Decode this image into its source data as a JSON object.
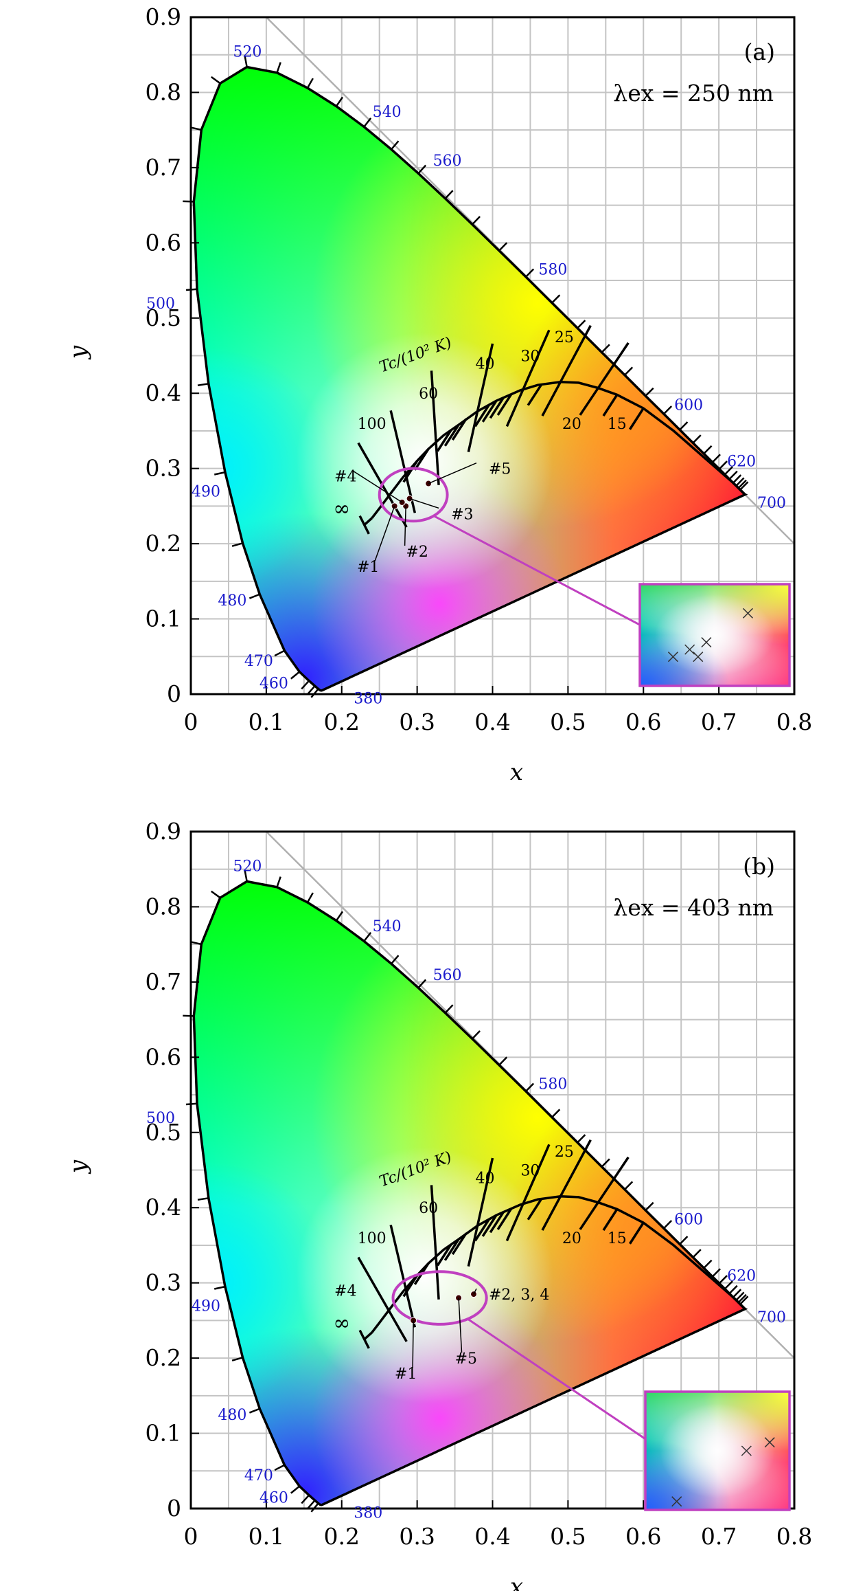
{
  "chart_data": [
    {
      "type": "scatter",
      "panel": "(a)",
      "excitation_label": "λex = 250 nm",
      "xlabel": "x",
      "ylabel": "y",
      "xlim": [
        0,
        0.8
      ],
      "ylim": [
        0,
        0.9
      ],
      "x_ticks": [
        "0",
        "0.1",
        "0.2",
        "0.3",
        "0.4",
        "0.5",
        "0.6",
        "0.7",
        "0.8"
      ],
      "y_ticks": [
        "0",
        "0.1",
        "0.2",
        "0.3",
        "0.4",
        "0.5",
        "0.6",
        "0.7",
        "0.8",
        "0.9"
      ],
      "grid": true,
      "locus_labels": [
        {
          "label": "380",
          "x": 0.235,
          "y": -0.005
        },
        {
          "label": "460",
          "x": 0.11,
          "y": 0.015
        },
        {
          "label": "470",
          "x": 0.09,
          "y": 0.045
        },
        {
          "label": "480",
          "x": 0.055,
          "y": 0.125
        },
        {
          "label": "490",
          "x": 0.02,
          "y": 0.27
        },
        {
          "label": "500",
          "x": -0.04,
          "y": 0.52
        },
        {
          "label": "520",
          "x": 0.075,
          "y": 0.855
        },
        {
          "label": "540",
          "x": 0.26,
          "y": 0.775
        },
        {
          "label": "560",
          "x": 0.34,
          "y": 0.71
        },
        {
          "label": "580",
          "x": 0.48,
          "y": 0.565
        },
        {
          "label": "600",
          "x": 0.66,
          "y": 0.385
        },
        {
          "label": "620",
          "x": 0.73,
          "y": 0.31
        },
        {
          "label": "700",
          "x": 0.77,
          "y": 0.255
        }
      ],
      "cct_label": "Tc/(10² K)",
      "cct_labels": [
        {
          "label": "∞",
          "x": 0.2,
          "y": 0.245
        },
        {
          "label": "100",
          "x": 0.24,
          "y": 0.36
        },
        {
          "label": "60",
          "x": 0.315,
          "y": 0.4
        },
        {
          "label": "40",
          "x": 0.39,
          "y": 0.44
        },
        {
          "label": "30",
          "x": 0.45,
          "y": 0.45
        },
        {
          "label": "25",
          "x": 0.495,
          "y": 0.475
        },
        {
          "label": "20",
          "x": 0.505,
          "y": 0.36
        },
        {
          "label": "15",
          "x": 0.565,
          "y": 0.36
        }
      ],
      "points": [
        {
          "label": "#1",
          "x": 0.27,
          "y": 0.25
        },
        {
          "label": "#2",
          "x": 0.285,
          "y": 0.25
        },
        {
          "label": "#3",
          "x": 0.29,
          "y": 0.26
        },
        {
          "label": "#4",
          "x": 0.28,
          "y": 0.255
        },
        {
          "label": "#5",
          "x": 0.315,
          "y": 0.28
        }
      ],
      "point_labels": [
        {
          "label": "#1",
          "x": 0.235,
          "y": 0.17
        },
        {
          "label": "#2",
          "x": 0.3,
          "y": 0.19
        },
        {
          "label": "#3",
          "x": 0.345,
          "y": 0.24
        },
        {
          "label": "#4",
          "x": 0.205,
          "y": 0.29
        },
        {
          "label": "#5",
          "x": 0.395,
          "y": 0.3
        }
      ]
    },
    {
      "type": "scatter",
      "panel": "(b)",
      "excitation_label": "λex = 403 nm",
      "xlabel": "x",
      "ylabel": "y",
      "xlim": [
        0,
        0.8
      ],
      "ylim": [
        0,
        0.9
      ],
      "x_ticks": [
        "0",
        "0.1",
        "0.2",
        "0.3",
        "0.4",
        "0.5",
        "0.6",
        "0.7",
        "0.8"
      ],
      "y_ticks": [
        "0",
        "0.1",
        "0.2",
        "0.3",
        "0.4",
        "0.5",
        "0.6",
        "0.7",
        "0.8",
        "0.9"
      ],
      "grid": true,
      "locus_labels": [
        {
          "label": "380",
          "x": 0.235,
          "y": -0.005
        },
        {
          "label": "460",
          "x": 0.11,
          "y": 0.015
        },
        {
          "label": "470",
          "x": 0.09,
          "y": 0.045
        },
        {
          "label": "480",
          "x": 0.055,
          "y": 0.125
        },
        {
          "label": "490",
          "x": 0.02,
          "y": 0.27
        },
        {
          "label": "500",
          "x": -0.04,
          "y": 0.52
        },
        {
          "label": "520",
          "x": 0.075,
          "y": 0.855
        },
        {
          "label": "540",
          "x": 0.26,
          "y": 0.775
        },
        {
          "label": "560",
          "x": 0.34,
          "y": 0.71
        },
        {
          "label": "580",
          "x": 0.48,
          "y": 0.565
        },
        {
          "label": "600",
          "x": 0.66,
          "y": 0.385
        },
        {
          "label": "620",
          "x": 0.73,
          "y": 0.31
        },
        {
          "label": "700",
          "x": 0.77,
          "y": 0.255
        }
      ],
      "cct_label": "Tc/(10² K)",
      "cct_labels": [
        {
          "label": "∞",
          "x": 0.2,
          "y": 0.245
        },
        {
          "label": "100",
          "x": 0.24,
          "y": 0.36
        },
        {
          "label": "60",
          "x": 0.315,
          "y": 0.4
        },
        {
          "label": "40",
          "x": 0.39,
          "y": 0.44
        },
        {
          "label": "30",
          "x": 0.45,
          "y": 0.45
        },
        {
          "label": "25",
          "x": 0.495,
          "y": 0.475
        },
        {
          "label": "20",
          "x": 0.505,
          "y": 0.36
        },
        {
          "label": "15",
          "x": 0.565,
          "y": 0.36
        }
      ],
      "points": [
        {
          "label": "#1",
          "x": 0.295,
          "y": 0.25
        },
        {
          "label": "#2, 3, 4",
          "x": 0.375,
          "y": 0.285
        },
        {
          "label": "#5",
          "x": 0.355,
          "y": 0.28
        }
      ],
      "point_labels": [
        {
          "label": "#1",
          "x": 0.285,
          "y": 0.18
        },
        {
          "label": "#2, 3, 4",
          "x": 0.395,
          "y": 0.285
        },
        {
          "label": "#4",
          "x": 0.205,
          "y": 0.29
        },
        {
          "label": "#5",
          "x": 0.35,
          "y": 0.2
        }
      ]
    }
  ]
}
